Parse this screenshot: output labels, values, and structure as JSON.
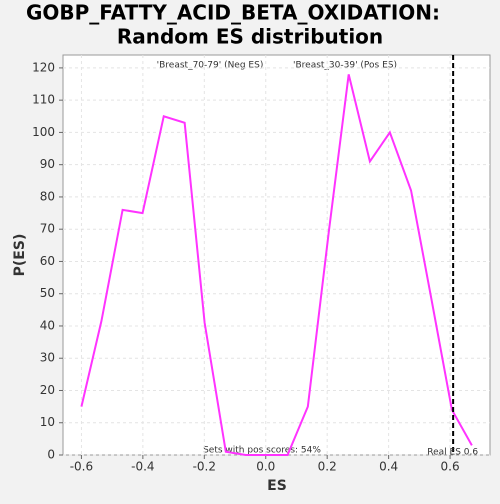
{
  "chart_data": {
    "type": "line",
    "title": "GOBP_FATTY_ACID_BETA_OXIDATION:",
    "subtitle": "Random ES distribution",
    "x_label": "ES",
    "y_label": "P(ES)",
    "x": [
      -0.6,
      -0.535,
      -0.466,
      -0.401,
      -0.332,
      -0.264,
      -0.199,
      -0.13,
      -0.065,
      0.003,
      0.071,
      0.137,
      0.205,
      0.27,
      0.339,
      0.404,
      0.473,
      0.538,
      0.606,
      0.671
    ],
    "series": [
      {
        "color": "#ff33ff",
        "values": [
          15,
          41.5,
          76,
          75,
          105,
          103,
          41,
          1,
          0,
          0,
          0,
          15,
          69,
          118,
          91,
          100,
          82,
          49,
          14,
          3
        ]
      }
    ],
    "xlim": [
      -0.66,
      0.73
    ],
    "ylim": [
      0,
      124
    ],
    "xticks": [
      -0.6,
      -0.4,
      -0.2,
      {
        "value": 0,
        "label": "0.0"
      },
      0.2,
      0.4,
      0.6
    ],
    "yticks": [
      0,
      10,
      20,
      30,
      40,
      50,
      60,
      70,
      80,
      90,
      100,
      110,
      120
    ],
    "grid": true,
    "neg_label": "'Breast_70-79' (Neg ES)",
    "neg_color": "#2222cc",
    "pos_label": "'Breast_30-39' (Pos ES)",
    "pos_color": "#dd2222",
    "annotation": "Sets with pos scores: 54%",
    "real_es": {
      "value": 0.61,
      "label": "Real ES 0.6"
    }
  }
}
